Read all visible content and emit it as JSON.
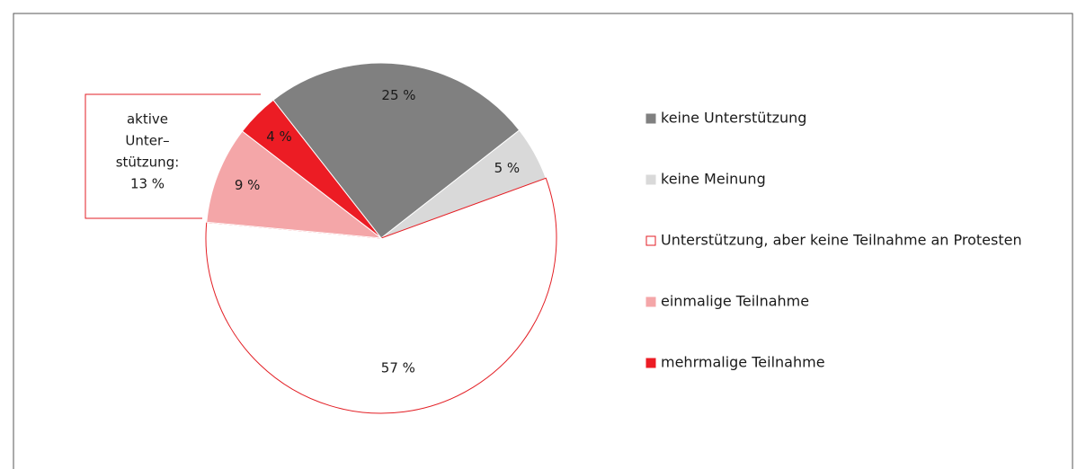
{
  "chart_data": {
    "type": "pie",
    "categories": [
      "keine Unterstützung",
      "keine Meinung",
      "Unterstützung, aber keine Teilnahme an Protesten",
      "einmalige Teilnahme",
      "mehrmalige Teilnahme"
    ],
    "values": [
      25,
      5,
      57,
      9,
      4
    ],
    "value_labels": [
      "25 %",
      "5 %",
      "57 %",
      "9 %",
      "4 %"
    ],
    "colors": [
      "#808080",
      "#d9d9d9",
      "#ffffff",
      "#f4a6a8",
      "#ec1c24"
    ],
    "annotation": [
      "aktive",
      "Unter–",
      "stützung:",
      "13 %"
    ]
  }
}
